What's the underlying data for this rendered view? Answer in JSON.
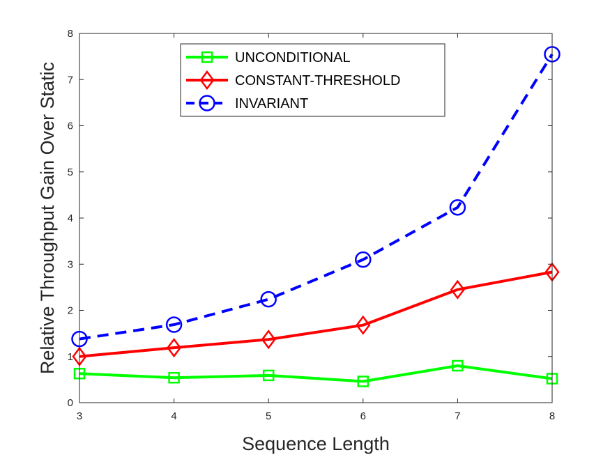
{
  "chart_data": {
    "type": "line",
    "title": "",
    "xlabel": "Sequence Length",
    "ylabel": "Relative Throughput Gain Over Static",
    "x": [
      3,
      4,
      5,
      6,
      7,
      8
    ],
    "xlim": [
      3,
      8
    ],
    "ylim": [
      0,
      8
    ],
    "xticks": [
      "3",
      "4",
      "5",
      "6",
      "7",
      "8"
    ],
    "yticks": [
      "0",
      "1",
      "2",
      "3",
      "4",
      "5",
      "6",
      "7",
      "8"
    ],
    "grid": false,
    "legend_position": "top-center",
    "series": [
      {
        "name": "UNCONDITIONAL",
        "values": [
          0.63,
          0.54,
          0.59,
          0.46,
          0.8,
          0.52
        ],
        "color": "#00ff00",
        "marker": "square",
        "line_style": "solid"
      },
      {
        "name": "CONSTANT-THRESHOLD",
        "values": [
          1.0,
          1.19,
          1.37,
          1.68,
          2.45,
          2.83
        ],
        "color": "#ff0000",
        "marker": "diamond",
        "line_style": "solid"
      },
      {
        "name": "INVARIANT",
        "values": [
          1.38,
          1.69,
          2.24,
          3.1,
          4.23,
          7.55
        ],
        "color": "#0000ff",
        "marker": "circle",
        "line_style": "dashed"
      }
    ]
  }
}
